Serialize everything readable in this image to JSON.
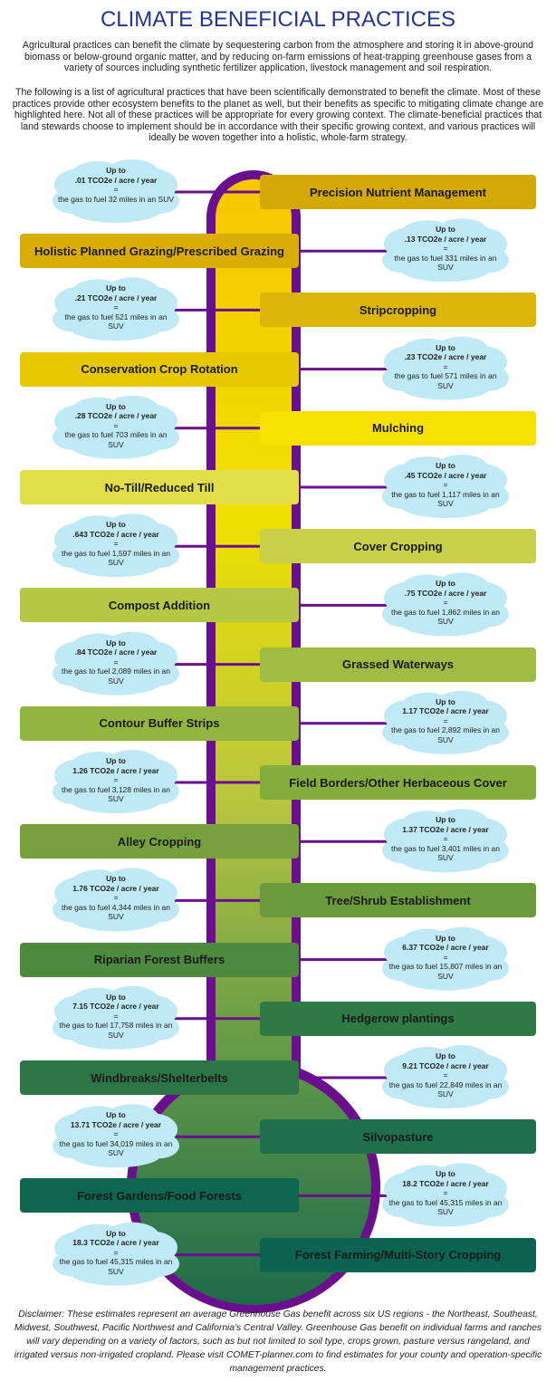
{
  "header": {
    "title": "CLIMATE BENEFICIAL PRACTICES",
    "paragraphs": [
      "Agricultural practices can benefit the climate by sequestering carbon from the atmosphere and storing it in above-ground biomass or below-ground organic matter, and by reducing on-farm emissions of heat-trapping greenhouse gases from a variety of sources including synthetic fertilizer application, livestock management and soil respiration.",
      "The following is a list of agricultural practices that have been scientifically demonstrated to benefit the climate. Most of these practices provide other ecosystem benefits to the planet as well, but their benefits as specific to mitigating climate change are highlighted here. Not all of these practices will be appropriate for every growing context. The climate-beneficial practices that land stewards choose to implement should be in accordance with their specific growing context, and various practices will ideally be woven together into a holistic, whole-farm strategy."
    ]
  },
  "practices": [
    {
      "name": "Precision Nutrient Management",
      "up_to": "Up to",
      "amount": ".01 TCO2e / acre / year",
      "equals": "=",
      "equivalent": "the gas to fuel 32 miles in an SUV",
      "color": "#d4a805"
    },
    {
      "name": "Holistic Planned Grazing/Prescribed Grazing",
      "up_to": "Up to",
      "amount": ".13 TCO2e / acre / year",
      "equals": "=",
      "equivalent": "the gas to fuel 331 miles in an SUV",
      "color": "#d9ad05"
    },
    {
      "name": "Stripcropping",
      "up_to": "Up to",
      "amount": ".21 TCO2e / acre / year",
      "equals": "=",
      "equivalent": "the gas to fuel 521 miles in an SUV",
      "color": "#dcb50a"
    },
    {
      "name": "Conservation Crop Rotation",
      "up_to": "Up to",
      "amount": ".23 TCO2e / acre / year",
      "equals": "=",
      "equivalent": "the gas to fuel 571 miles in an SUV",
      "color": "#e6c800"
    },
    {
      "name": "Mulching",
      "up_to": "Up to",
      "amount": ".28 TCO2e / acre / year",
      "equals": "=",
      "equivalent": "the gas to fuel 703 miles in an SUV",
      "color": "#f7e100"
    },
    {
      "name": "No-Till/Reduced Till",
      "up_to": "Up to",
      "amount": ".45 TCO2e / acre / year",
      "equals": "=",
      "equivalent": "the gas to fuel 1,117 miles in an SUV",
      "color": "#e2de4a"
    },
    {
      "name": "Cover Cropping",
      "up_to": "Up to",
      "amount": ".643 TCO2e / acre / year",
      "equals": "=",
      "equivalent": "the gas to fuel 1,597 miles in an SUV",
      "color": "#c8d049"
    },
    {
      "name": "Compost Addition",
      "up_to": "Up to",
      "amount": ".75 TCO2e / acre / year",
      "equals": "=",
      "equivalent": "the gas to fuel 1,862 miles in an SUV",
      "color": "#b5c845"
    },
    {
      "name": "Grassed Waterways",
      "up_to": "Up to",
      "amount": ".84 TCO2e / acre / year",
      "equals": "=",
      "equivalent": "the gas to fuel 2,089 miles in an SUV",
      "color": "#9fbb42"
    },
    {
      "name": "Contour Buffer Strips",
      "up_to": "Up to",
      "amount": "1.17 TCO2e / acre / year",
      "equals": "=",
      "equivalent": "the gas to fuel 2,892 miles in an SUV",
      "color": "#92b540"
    },
    {
      "name": "Field Borders/Other Herbaceous Cover",
      "up_to": "Up to",
      "amount": "1.26 TCO2e / acre / year",
      "equals": "=",
      "equivalent": "the gas to fuel 3,128 miles in an SUV",
      "color": "#85ad3e"
    },
    {
      "name": "Alley Cropping",
      "up_to": "Up to",
      "amount": "1.37 TCO2e / acre / year",
      "equals": "=",
      "equivalent": "the gas to fuel 3,401 miles in an SUV",
      "color": "#77a13c"
    },
    {
      "name": "Tree/Shrub Establishment",
      "up_to": "Up to",
      "amount": "1.76 TCO2e / acre / year",
      "equals": "=",
      "equivalent": "the gas to fuel 4,344 miles in an SUV",
      "color": "#6a9a3c"
    },
    {
      "name": "Riparian Forest Buffers",
      "up_to": "Up to",
      "amount": "6.37 TCO2e / acre / year",
      "equals": "=",
      "equivalent": "the gas to fuel 15,807 miles in an SUV",
      "color": "#4d8a3e"
    },
    {
      "name": "Hedgerow plantings",
      "up_to": "Up to",
      "amount": "7.15 TCO2e / acre / year",
      "equals": "=",
      "equivalent": "the gas to fuel 17,758 miles in an SUV",
      "color": "#2f7a44"
    },
    {
      "name": "Windbreaks/Shelterbelts",
      "up_to": "Up to",
      "amount": "9.21 TCO2e / acre / year",
      "equals": "=",
      "equivalent": "the gas to fuel 22,849 miles in an SUV",
      "color": "#2e7546"
    },
    {
      "name": "Silvopasture",
      "up_to": "Up to",
      "amount": "13.71 TCO2e / acre / year",
      "equals": "=",
      "equivalent": "the gas to fuel 34,019 miles in an SUV",
      "color": "#1f6e4c"
    },
    {
      "name": "Forest Gardens/Food Forests",
      "up_to": "Up to",
      "amount": "18.2 TCO2e / acre / year",
      "equals": "=",
      "equivalent": "the gas to fuel 45,315 miles in an SUV",
      "color": "#0e6550"
    },
    {
      "name": "Forest Farming/Multi-Story Cropping",
      "up_to": "Up to",
      "amount": "18.3 TCO2e / acre / year",
      "equals": "=",
      "equivalent": "the gas to fuel 45,315 miles in an SUV",
      "color": "#0b6450"
    }
  ],
  "footer": {
    "disclaimer": "Disclaimer: These estimates represent an average Greenhouse Gas benefit across six US regions - the Northeast, Southeast, Midwest, Southwest, Pacific Northwest and California's Central Valley. Greenhouse Gas benefit on individual farms and ranches will vary depending on a variety of factors, such as but not limited to soil type, crops grown, pasture versus rangeland, and irrigated versus non-irrigated cropland. Please visit COMET-planner.com to find estimates for your county and operation-specific management practices."
  }
}
